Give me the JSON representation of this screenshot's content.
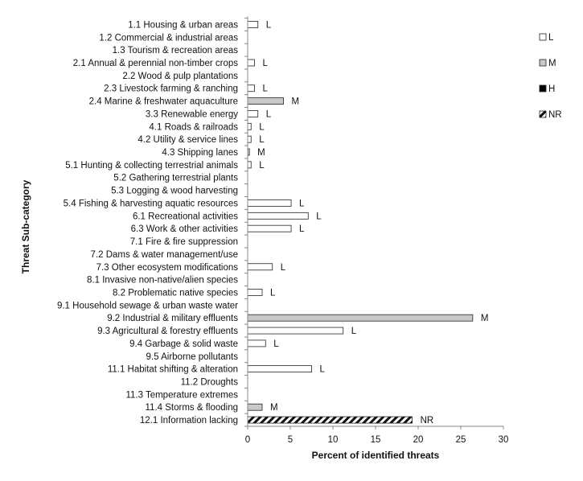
{
  "chart_data": {
    "type": "bar",
    "orientation": "horizontal",
    "ylabel": "Threat Sub-category",
    "xlabel": "Percent of identified threats",
    "xlim": [
      0,
      30
    ],
    "xticks": [
      "0",
      "5",
      "10",
      "15",
      "20",
      "25",
      "30"
    ],
    "grid": false,
    "legend_position": "right",
    "legend": [
      {
        "key": "L",
        "label": "L",
        "color": "#ffffff"
      },
      {
        "key": "M",
        "label": "M",
        "color": "#c8c8c8"
      },
      {
        "key": "H",
        "label": "H",
        "color": "#000000"
      },
      {
        "key": "NR",
        "label": "NR",
        "color": "hatched"
      }
    ],
    "categories": [
      {
        "label": "1.1 Housing & urban areas",
        "value": 1.2,
        "level": "L"
      },
      {
        "label": "1.2 Commercial & industrial areas",
        "value": 0,
        "level": ""
      },
      {
        "label": "1.3 Tourism & recreation areas",
        "value": 0,
        "level": ""
      },
      {
        "label": "2.1 Annual & perennial non-timber crops",
        "value": 0.8,
        "level": "L"
      },
      {
        "label": "2.2 Wood & pulp plantations",
        "value": 0,
        "level": ""
      },
      {
        "label": "2.3 Livestock farming & ranching",
        "value": 0.8,
        "level": "L"
      },
      {
        "label": "2.4 Marine & freshwater aquaculture",
        "value": 4.2,
        "level": "M"
      },
      {
        "label": "3.3 Renewable energy",
        "value": 1.2,
        "level": "L"
      },
      {
        "label": "4.1 Roads & railroads",
        "value": 0.4,
        "level": "L"
      },
      {
        "label": "4.2 Utility & service lines",
        "value": 0.4,
        "level": "L"
      },
      {
        "label": "4.3 Shipping lanes",
        "value": 0.2,
        "level": "M"
      },
      {
        "label": "5.1 Hunting & collecting terrestrial animals",
        "value": 0.4,
        "level": "L"
      },
      {
        "label": "5.2 Gathering terrestrial plants",
        "value": 0,
        "level": ""
      },
      {
        "label": "5.3 Logging & wood harvesting",
        "value": 0,
        "level": ""
      },
      {
        "label": "5.4 Fishing & harvesting aquatic resources",
        "value": 5.1,
        "level": "L"
      },
      {
        "label": "6.1 Recreational activities",
        "value": 7.1,
        "level": "L"
      },
      {
        "label": "6.3 Work & other activities",
        "value": 5.1,
        "level": "L"
      },
      {
        "label": "7.1 Fire & fire suppression",
        "value": 0,
        "level": ""
      },
      {
        "label": "7.2 Dams & water management/use",
        "value": 0,
        "level": ""
      },
      {
        "label": "7.3 Other ecosystem modifications",
        "value": 2.9,
        "level": "L"
      },
      {
        "label": "8.1 Invasive non-native/alien species",
        "value": 0,
        "level": ""
      },
      {
        "label": "8.2 Problematic native species",
        "value": 1.7,
        "level": "L"
      },
      {
        "label": "9.1 Household sewage & urban waste water",
        "value": 0,
        "level": ""
      },
      {
        "label": "9.2 Industrial & military effluents",
        "value": 26.4,
        "level": "M"
      },
      {
        "label": "9.3 Agricultural & forestry effluents",
        "value": 11.2,
        "level": "L"
      },
      {
        "label": "9.4 Garbage & solid waste",
        "value": 2.1,
        "level": "L"
      },
      {
        "label": "9.5 Airborne pollutants",
        "value": 0,
        "level": ""
      },
      {
        "label": "11.1 Habitat shifting & alteration",
        "value": 7.5,
        "level": "L"
      },
      {
        "label": "11.2 Droughts",
        "value": 0,
        "level": ""
      },
      {
        "label": "11.3 Temperature extremes",
        "value": 0,
        "level": ""
      },
      {
        "label": "11.4 Storms & flooding",
        "value": 1.7,
        "level": "M"
      },
      {
        "label": "12.1 Information lacking",
        "value": 19.3,
        "level": "NR"
      }
    ]
  }
}
